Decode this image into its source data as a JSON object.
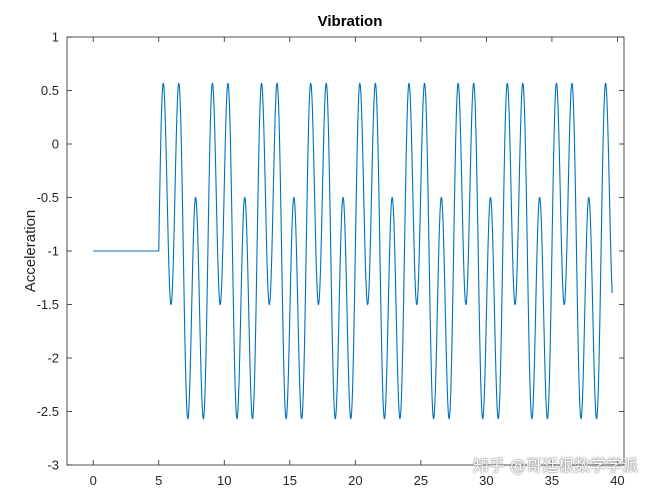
{
  "chart_data": {
    "type": "line",
    "title": "Vibration",
    "xlabel": "",
    "ylabel": "Acceleration",
    "xlim": [
      -2,
      40.5
    ],
    "ylim": [
      -3,
      1
    ],
    "xticks": [
      0,
      5,
      10,
      15,
      20,
      25,
      30,
      35,
      40
    ],
    "yticks": [
      1,
      0.5,
      0,
      -0.5,
      -1,
      -1.5,
      -2,
      -2.5,
      -3
    ],
    "xtick_labels": [
      "0",
      "5",
      "10",
      "15",
      "20",
      "25",
      "30",
      "35",
      "40"
    ],
    "ytick_labels": [
      "1",
      "0.5",
      "0",
      "-0.5",
      "-1",
      "-1.5",
      "-2",
      "-2.5",
      "-3"
    ],
    "grid": false,
    "series": [
      {
        "name": "acceleration",
        "color": "#0072BD",
        "x_range": [
          0,
          39.6
        ],
        "signal": {
          "baseline": -1.0,
          "onset_x": 5.0,
          "offset": -1.0,
          "components": [
            {
              "amplitude": 1.2,
              "period": 1.25,
              "function": "sin"
            },
            {
              "amplitude": 0.7,
              "period": 3.75,
              "function": "sin"
            }
          ]
        }
      }
    ]
  },
  "watermark": "知乎 @哥廷根数学学派"
}
